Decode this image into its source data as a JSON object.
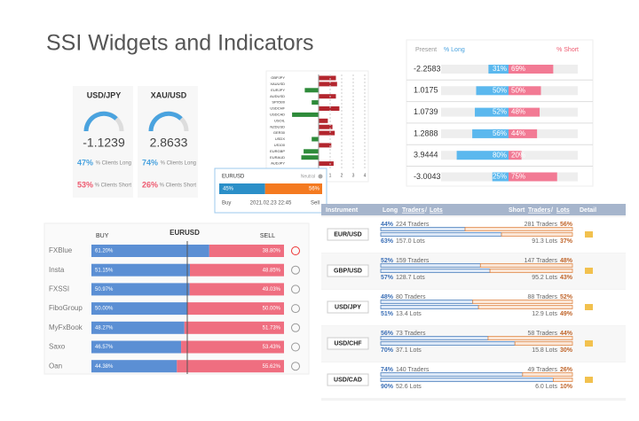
{
  "title": "SSI Widgets and Indicators",
  "gauges": [
    {
      "symbol": "USD/JPY",
      "value": "-1.1239",
      "long_pct": "47%",
      "long_label": "% Clients Long",
      "short_pct": "53%",
      "short_label": "% Clients Short"
    },
    {
      "symbol": "XAU/USD",
      "value": "2.8633",
      "long_pct": "74%",
      "long_label": "% Clients Long",
      "short_pct": "26%",
      "short_label": "% Clients Short"
    }
  ],
  "mini_chart": {
    "categories": [
      "GBPJPY",
      "XAUUSD",
      "EURJPY",
      "AUDUSD",
      "SPX500",
      "USDCHF",
      "USDCAD",
      "USOIL",
      "NZDUSD",
      "GER30",
      "USDX",
      "US100",
      "EURGBP",
      "EURAUD",
      "AUDJPY"
    ],
    "values": [
      1.5,
      1.6,
      -1.2,
      1.5,
      -0.6,
      1.8,
      -2.3,
      0.8,
      1.2,
      1.4,
      -0.6,
      1.1,
      -1.3,
      -1.5,
      1.3
    ],
    "xticks": [
      1,
      2,
      3,
      4
    ],
    "xlim": [
      -3,
      4
    ]
  },
  "popup": {
    "symbol": "EURUSD",
    "status": "Neutral",
    "buy": 45,
    "buy_label": "45%",
    "sell": 56,
    "sell_label": "56%",
    "buy_text": "Buy",
    "time": "2021.02.23 22:45",
    "sell_text": "Sell"
  },
  "present_table": {
    "header": {
      "present": "Present",
      "long": "% Long",
      "short": "% Short"
    },
    "rows": [
      {
        "present": "-2.2583",
        "long": 31,
        "long_label": "31%",
        "short": 69,
        "short_label": "69%"
      },
      {
        "present": "1.0175",
        "long": 50,
        "long_label": "50%",
        "short": 50,
        "short_label": "50%"
      },
      {
        "present": "1.0739",
        "long": 52,
        "long_label": "52%",
        "short": 48,
        "short_label": "48%"
      },
      {
        "present": "1.2888",
        "long": 56,
        "long_label": "56%",
        "short": 44,
        "short_label": "44%"
      },
      {
        "present": "3.9444",
        "long": 80,
        "long_label": "80%",
        "short": 20,
        "short_label": "20%"
      },
      {
        "present": "-3.0043",
        "long": 25,
        "long_label": "25%",
        "short": 75,
        "short_label": "75%"
      }
    ]
  },
  "brokers": {
    "symbol": "EURUSD",
    "buy": "BUY",
    "sell": "SELL",
    "rows": [
      {
        "name": "FXBlue",
        "long": 61.2,
        "long_label": "61.20%",
        "short": 38.8,
        "short_label": "38.80%"
      },
      {
        "name": "Insta",
        "long": 51.15,
        "long_label": "51.15%",
        "short": 48.85,
        "short_label": "48.85%"
      },
      {
        "name": "FXSSI",
        "long": 50.97,
        "long_label": "50.97%",
        "short": 49.03,
        "short_label": "49.03%"
      },
      {
        "name": "FiboGroup",
        "long": 50,
        "long_label": "50.00%",
        "short": 50,
        "short_label": "50.00%"
      },
      {
        "name": "MyFxBook",
        "long": 48.27,
        "long_label": "48.27%",
        "short": 51.73,
        "short_label": "51.73%"
      },
      {
        "name": "Saxo",
        "long": 46.57,
        "long_label": "46.57%",
        "short": 53.43,
        "short_label": "53.43%"
      },
      {
        "name": "Oan",
        "long": 44.38,
        "long_label": "44.38%",
        "short": 55.62,
        "short_label": "55.62%"
      }
    ]
  },
  "traders_table": {
    "header": {
      "instrument": "Instrument",
      "long": "Long",
      "traders": "Traders",
      "slash": "/",
      "lots": "Lots",
      "short": "Short",
      "detail": "Detail"
    },
    "rows": [
      {
        "instrument": "EUR/USD",
        "lt": 44,
        "lt_label": "44%",
        "lt_count": "224 Traders",
        "st_count": "281 Traders",
        "st": 56,
        "st_label": "56%",
        "ll": 63,
        "ll_label": "63%",
        "ll_count": "157.0 Lots",
        "sl_count": "91.3 Lots",
        "sl": 37,
        "sl_label": "37%"
      },
      {
        "instrument": "GBP/USD",
        "lt": 52,
        "lt_label": "52%",
        "lt_count": "159 Traders",
        "st_count": "147 Traders",
        "st": 48,
        "st_label": "48%",
        "ll": 57,
        "ll_label": "57%",
        "ll_count": "128.7 Lots",
        "sl_count": "95.2 Lots",
        "sl": 43,
        "sl_label": "43%"
      },
      {
        "instrument": "USD/JPY",
        "lt": 48,
        "lt_label": "48%",
        "lt_count": "80 Traders",
        "st_count": "88 Traders",
        "st": 52,
        "st_label": "52%",
        "ll": 51,
        "ll_label": "51%",
        "ll_count": "13.4 Lots",
        "sl_count": "12.9 Lots",
        "sl": 49,
        "sl_label": "49%"
      },
      {
        "instrument": "USD/CHF",
        "lt": 56,
        "lt_label": "56%",
        "lt_count": "73 Traders",
        "st_count": "58 Traders",
        "st": 44,
        "st_label": "44%",
        "ll": 70,
        "ll_label": "70%",
        "ll_count": "37.1 Lots",
        "sl_count": "15.8 Lots",
        "sl": 30,
        "sl_label": "30%"
      },
      {
        "instrument": "USD/CAD",
        "lt": 74,
        "lt_label": "74%",
        "lt_count": "140 Traders",
        "st_count": "49 Traders",
        "st": 26,
        "st_label": "26%",
        "ll": 90,
        "ll_label": "90%",
        "ll_count": "52.6 Lots",
        "sl_count": "6.0 Lots",
        "sl": 10,
        "sl_label": "10%"
      }
    ]
  }
}
